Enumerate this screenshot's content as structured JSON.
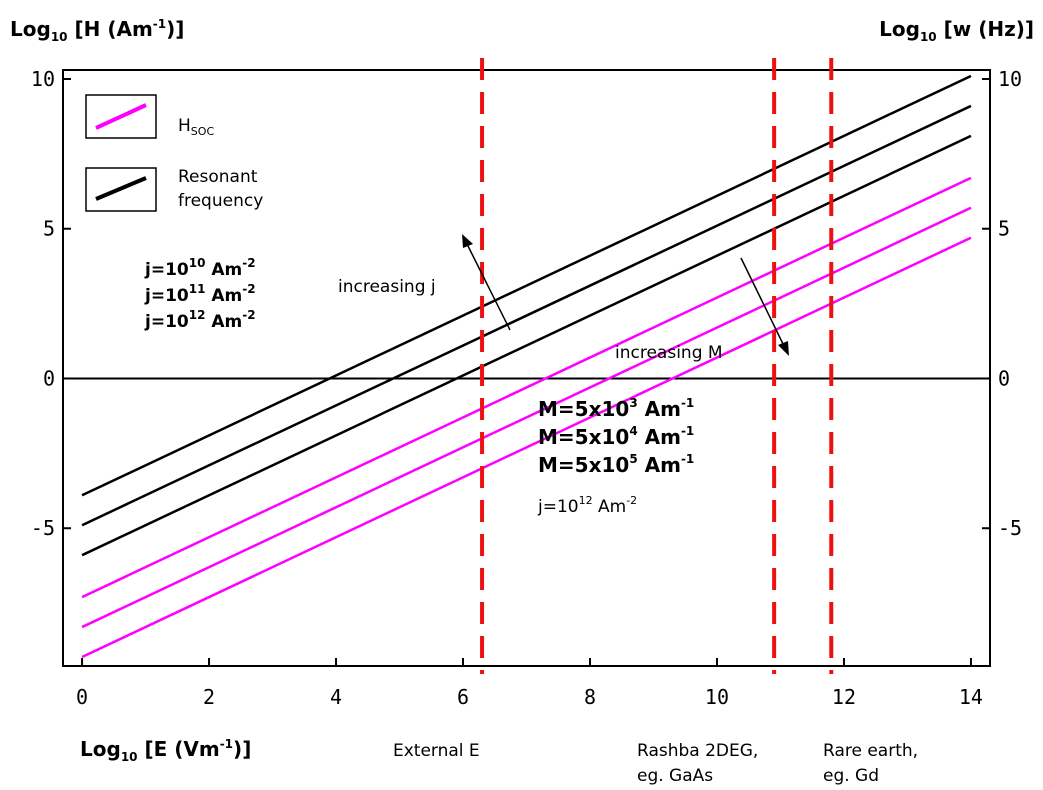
{
  "titles": {
    "left_axis": {
      "main": "Log",
      "sub": "10",
      "unit_pre": " [H (Am",
      "unit_sup": "-1",
      "unit_post": ")]"
    },
    "right_axis": {
      "main": "Log",
      "sub": "10",
      "unit": " [w (Hz)]"
    },
    "x_axis": {
      "main": "Log",
      "sub": "10",
      "unit_pre": " [E (Vm",
      "unit_sup": "-1",
      "unit_post": ")]"
    }
  },
  "legend": {
    "soc": {
      "label_main": "H",
      "label_sub": "SOC",
      "color": "#ff00ff"
    },
    "resonant": {
      "line1": "Resonant",
      "line2": "frequency",
      "color": "#000000"
    }
  },
  "annotations": {
    "j_list": [
      {
        "base": "j=10",
        "exp": "10",
        "unit": " Am",
        "unit_exp": "-2"
      },
      {
        "base": "j=10",
        "exp": "11",
        "unit": " Am",
        "unit_exp": "-2"
      },
      {
        "base": "j=10",
        "exp": "12",
        "unit": " Am",
        "unit_exp": "-2"
      }
    ],
    "m_list": [
      {
        "base": "M=5x10",
        "exp": "3",
        "unit": " Am",
        "unit_exp": "-1"
      },
      {
        "base": "M=5x10",
        "exp": "4",
        "unit": " Am",
        "unit_exp": "-1"
      },
      {
        "base": "M=5x10",
        "exp": "5",
        "unit": " Am",
        "unit_exp": "-1"
      }
    ],
    "j_fixed": {
      "base": "j=10",
      "exp": "12",
      "unit": " Am",
      "unit_exp": "-2"
    },
    "increasing_j": "increasing j",
    "increasing_m": "increasing M"
  },
  "markers": [
    {
      "x": 6.3,
      "label_lines": [
        "External E"
      ]
    },
    {
      "x": 10.9,
      "label_lines": [
        "Rashba 2DEG,",
        "eg.  GaAs"
      ]
    },
    {
      "x": 11.8,
      "label_lines": [
        "Rare earth,",
        "eg. Gd"
      ]
    }
  ],
  "chart_data": {
    "type": "line",
    "xlim": [
      -0.3,
      14.3
    ],
    "ylim": [
      -9.6,
      10.3
    ],
    "x_ticks": [
      0,
      2,
      4,
      6,
      8,
      10,
      12,
      14
    ],
    "y_ticks": [
      -5,
      0,
      5,
      10
    ],
    "grid": false,
    "legend_position": "top-left",
    "reference_line_y": 0,
    "marker_color": "#ee1111",
    "series": [
      {
        "group": "resonant",
        "color": "#000000",
        "x": [
          0,
          14
        ],
        "y": [
          -3.9,
          10.1
        ]
      },
      {
        "group": "resonant",
        "color": "#000000",
        "x": [
          0,
          14
        ],
        "y": [
          -4.9,
          9.1
        ]
      },
      {
        "group": "resonant",
        "color": "#000000",
        "x": [
          0,
          14
        ],
        "y": [
          -5.9,
          8.1
        ]
      },
      {
        "group": "soc",
        "color": "#ff00ff",
        "x": [
          0,
          14
        ],
        "y": [
          -7.3,
          6.7
        ]
      },
      {
        "group": "soc",
        "color": "#ff00ff",
        "x": [
          0,
          14
        ],
        "y": [
          -8.3,
          5.7
        ]
      },
      {
        "group": "soc",
        "color": "#ff00ff",
        "x": [
          0,
          14
        ],
        "y": [
          -9.3,
          4.7
        ]
      }
    ]
  }
}
